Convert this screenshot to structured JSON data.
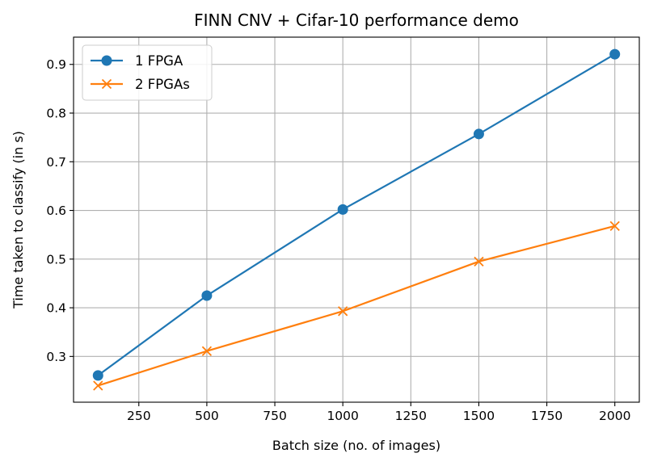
{
  "chart_data": {
    "type": "line",
    "title": "FINN CNV + Cifar-10 performance demo",
    "xlabel": "Batch size (no. of images)",
    "ylabel": "Time taken to classify (in s)",
    "xlim": [
      10,
      2090
    ],
    "ylim": [
      0.206,
      0.956
    ],
    "xticks": [
      250,
      500,
      750,
      1000,
      1250,
      1500,
      1750,
      2000
    ],
    "yticks": [
      0.3,
      0.4,
      0.5,
      0.6,
      0.7,
      0.8,
      0.9
    ],
    "grid": true,
    "legend_position": "top-left",
    "series": [
      {
        "name": "1 FPGA",
        "marker": "circle",
        "color": "#1f77b4",
        "x": [
          100,
          500,
          1000,
          1500,
          2000
        ],
        "y": [
          0.261,
          0.425,
          0.602,
          0.757,
          0.921
        ]
      },
      {
        "name": "2 FPGAs",
        "marker": "x",
        "color": "#ff7f0e",
        "x": [
          100,
          500,
          1000,
          1500,
          2000
        ],
        "y": [
          0.24,
          0.311,
          0.393,
          0.495,
          0.568
        ]
      }
    ]
  }
}
